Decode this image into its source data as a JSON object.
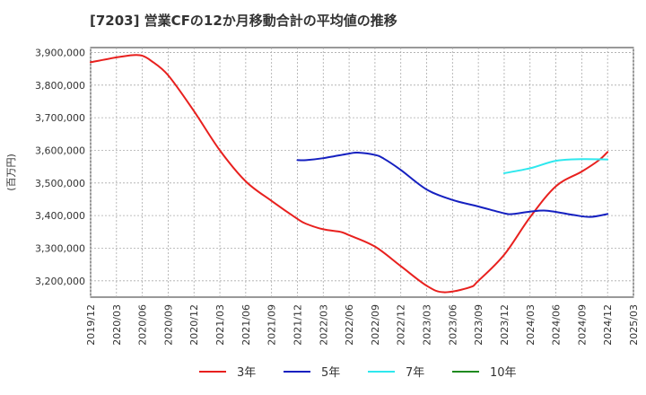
{
  "chart_data": {
    "type": "line",
    "title": "[7203]  営業CFの12か月移動合計の平均値の推移",
    "ylabel": "(百万円)",
    "xlabel": "",
    "ylim": [
      3150000,
      3915000
    ],
    "grid": true,
    "legend_position": "bottom",
    "y_ticks": [
      3200000,
      3300000,
      3400000,
      3500000,
      3600000,
      3700000,
      3800000,
      3900000
    ],
    "y_tick_labels": [
      "3,200,000",
      "3,300,000",
      "3,400,000",
      "3,500,000",
      "3,600,000",
      "3,700,000",
      "3,800,000",
      "3,900,000"
    ],
    "x_tick_labels": [
      "2019/12",
      "2020/03",
      "2020/06",
      "2020/09",
      "2020/12",
      "2021/03",
      "2021/06",
      "2021/09",
      "2021/12",
      "2022/03",
      "2022/06",
      "2022/09",
      "2022/12",
      "2023/03",
      "2023/06",
      "2023/09",
      "2023/12",
      "2024/03",
      "2024/06",
      "2024/09",
      "2024/12",
      "2025/03"
    ],
    "series": [
      {
        "name": "3年",
        "color": "#e8201e",
        "points": [
          [
            "2019/12",
            3870000
          ],
          [
            "2020/03",
            3885000
          ],
          [
            "2020/05",
            3892000
          ],
          [
            "2020/06",
            3890000
          ],
          [
            "2020/07",
            3875000
          ],
          [
            "2020/09",
            3830000
          ],
          [
            "2020/12",
            3720000
          ],
          [
            "2021/03",
            3600000
          ],
          [
            "2021/06",
            3505000
          ],
          [
            "2021/09",
            3445000
          ],
          [
            "2021/12",
            3390000
          ],
          [
            "2022/01",
            3375000
          ],
          [
            "2022/03",
            3358000
          ],
          [
            "2022/05",
            3350000
          ],
          [
            "2022/06",
            3340000
          ],
          [
            "2022/09",
            3305000
          ],
          [
            "2022/12",
            3245000
          ],
          [
            "2023/03",
            3185000
          ],
          [
            "2023/05",
            3165000
          ],
          [
            "2023/08",
            3180000
          ],
          [
            "2023/09",
            3200000
          ],
          [
            "2023/12",
            3280000
          ],
          [
            "2024/03",
            3395000
          ],
          [
            "2024/06",
            3490000
          ],
          [
            "2024/09",
            3535000
          ],
          [
            "2024/11",
            3570000
          ],
          [
            "2024/12",
            3595000
          ]
        ]
      },
      {
        "name": "5年",
        "color": "#1520c0",
        "points": [
          [
            "2021/12",
            3570000
          ],
          [
            "2022/01",
            3570000
          ],
          [
            "2022/03",
            3576000
          ],
          [
            "2022/06",
            3590000
          ],
          [
            "2022/07",
            3593000
          ],
          [
            "2022/09",
            3586000
          ],
          [
            "2022/10",
            3575000
          ],
          [
            "2022/12",
            3540000
          ],
          [
            "2023/03",
            3480000
          ],
          [
            "2023/06",
            3448000
          ],
          [
            "2023/09",
            3428000
          ],
          [
            "2023/12",
            3407000
          ],
          [
            "2024/01",
            3405000
          ],
          [
            "2024/03",
            3412000
          ],
          [
            "2024/05",
            3415000
          ],
          [
            "2024/08",
            3402000
          ],
          [
            "2024/10",
            3396000
          ],
          [
            "2024/12",
            3405000
          ]
        ]
      },
      {
        "name": "7年",
        "color": "#2ee8ee",
        "points": [
          [
            "2023/12",
            3530000
          ],
          [
            "2024/03",
            3545000
          ],
          [
            "2024/06",
            3568000
          ],
          [
            "2024/09",
            3573000
          ],
          [
            "2024/12",
            3572000
          ]
        ]
      },
      {
        "name": "10年",
        "color": "#1f8a1f",
        "points": []
      }
    ]
  }
}
